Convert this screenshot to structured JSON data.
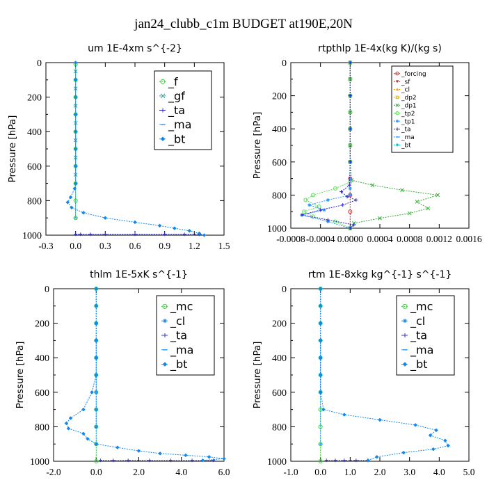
{
  "figure": {
    "title": "jan24_clubb_c1m  BUDGET at190E,20N"
  },
  "chart_data": [
    {
      "type": "line",
      "title": "um   1E-4xm s^{-2}",
      "ylabel": "Pressure [hPa]",
      "xlim": [
        -0.3,
        1.5
      ],
      "ylim": [
        1000,
        0
      ],
      "xticks": [
        "-0.3",
        "0.0",
        "0.3",
        "0.6",
        "0.9",
        "1.2",
        "1.5"
      ],
      "yticks": [
        "0",
        "200",
        "400",
        "600",
        "800",
        "1000"
      ],
      "legend_position": "top-right",
      "legend_font": 16,
      "legend_box": 1,
      "series": [
        {
          "name": "_f",
          "color": "#33cc33",
          "marker": "circle-open",
          "x": [
            0.0,
            0.0,
            0.0,
            0.0,
            0.0,
            0.0,
            0.0,
            0.0,
            0.0,
            0.0
          ],
          "y": [
            10,
            100,
            200,
            300,
            400,
            500,
            600,
            700,
            800,
            900
          ]
        },
        {
          "name": "_gf",
          "color": "#339999",
          "marker": "x",
          "x": [
            0.0,
            0.0,
            0.0,
            0.0,
            0.0,
            0.0,
            0.0
          ],
          "y": [
            50,
            150,
            250,
            350,
            450,
            550,
            650
          ]
        },
        {
          "name": "_ta",
          "color": "#3333cc",
          "marker": "plus",
          "x": [
            0.0,
            0.05,
            0.15,
            0.3,
            0.6,
            0.9,
            1.1,
            1.25
          ],
          "y": [
            995,
            995,
            995,
            995,
            995,
            995,
            995,
            995
          ]
        },
        {
          "name": "_ma",
          "color": "#3399ff",
          "marker": "dash",
          "x": [
            0.0,
            0.0,
            0.0
          ],
          "y": [
            300,
            600,
            900
          ]
        },
        {
          "name": "_bt",
          "color": "#1188ee",
          "marker": "diamond",
          "x": [
            0.0,
            0.0,
            0.0,
            0.0,
            0.0,
            0.0,
            0.0,
            0.0,
            -0.01,
            -0.05,
            -0.08,
            -0.04,
            0.08,
            0.3,
            0.6,
            0.85,
            1.0,
            1.15,
            1.25,
            1.3
          ],
          "y": [
            0,
            100,
            200,
            300,
            400,
            500,
            600,
            700,
            730,
            780,
            810,
            840,
            870,
            900,
            925,
            945,
            960,
            975,
            990,
            1000
          ]
        }
      ]
    },
    {
      "type": "line",
      "title": "rtpthlp   1E-4x(kg K)/(kg s)",
      "ylabel": "Pressure [hPa]",
      "xlim": [
        -0.0008,
        0.0016
      ],
      "ylim": [
        1000,
        0
      ],
      "xticks": [
        "-0.0008",
        "-0.0004",
        "0.0000",
        "0.0004",
        "0.0008",
        "0.0012",
        "0.0016"
      ],
      "yticks": [
        "0",
        "200",
        "400",
        "600",
        "800",
        "1000"
      ],
      "legend_position": "top-right",
      "legend_font": 9,
      "legend_box": 1,
      "series": [
        {
          "name": "_forcing",
          "color": "#dd2222",
          "marker": "circle-open",
          "x": [
            0,
            0,
            0,
            0,
            0,
            0,
            0,
            0,
            0,
            0,
            0
          ],
          "y": [
            0,
            100,
            200,
            300,
            400,
            500,
            600,
            700,
            800,
            900,
            1000
          ]
        },
        {
          "name": "_sf",
          "color": "#cc2222",
          "marker": "triangle-down",
          "x": [],
          "y": []
        },
        {
          "name": "_cl",
          "color": "#ff9900",
          "marker": "triangle-up",
          "x": [],
          "y": []
        },
        {
          "name": "_dp2",
          "color": "#ddbb00",
          "marker": "square",
          "x": [],
          "y": []
        },
        {
          "name": "_dp1",
          "color": "#33aa33",
          "marker": "x",
          "x": [
            0,
            0,
            0,
            0,
            0,
            0,
            0,
            2e-05,
            0.0003,
            0.0007,
            0.00118,
            0.0009,
            0.00105,
            0.0008,
            0.0004,
            5e-05,
            0
          ],
          "y": [
            0,
            100,
            200,
            300,
            400,
            500,
            600,
            710,
            740,
            770,
            800,
            840,
            880,
            910,
            940,
            970,
            1000
          ]
        },
        {
          "name": "_tp2",
          "color": "#55dd55",
          "marker": "circle-open",
          "x": [
            0,
            0,
            0,
            0,
            0,
            0,
            0,
            0,
            -0.0002,
            -0.0005,
            -0.0006,
            -0.00042,
            -0.00062,
            -0.0005,
            -0.0002,
            0
          ],
          "y": [
            0,
            100,
            200,
            300,
            400,
            500,
            600,
            720,
            760,
            800,
            830,
            870,
            900,
            930,
            960,
            1000
          ]
        },
        {
          "name": "_tp1",
          "color": "#3399ff",
          "marker": "star",
          "x": [
            0,
            0,
            0,
            0,
            0,
            0,
            0,
            -0.0003,
            -0.00055,
            -0.00035,
            -0.00065,
            -0.0003,
            0
          ],
          "y": [
            0,
            200,
            400,
            600,
            700,
            760,
            800,
            830,
            860,
            890,
            920,
            960,
            1000
          ]
        },
        {
          "name": "_ta",
          "color": "#2222cc",
          "marker": "plus",
          "x": [
            0,
            0,
            0,
            0,
            -1e-05,
            -0.00012,
            -4e-05,
            8e-05,
            -0.0001,
            -0.0004,
            -0.00065,
            -0.0003,
            5e-05,
            0
          ],
          "y": [
            0,
            200,
            400,
            600,
            740,
            780,
            810,
            830,
            860,
            890,
            920,
            950,
            980,
            1000
          ]
        },
        {
          "name": "_ma",
          "color": "#3399ff",
          "marker": "dash",
          "x": [],
          "y": []
        },
        {
          "name": "_bt",
          "color": "#00ccdd",
          "marker": "diamond",
          "x": [],
          "y": []
        }
      ]
    },
    {
      "type": "line",
      "title": "thlm   1E-5xK s^{-1}",
      "ylabel": "Pressure [hPa]",
      "xlim": [
        -2.0,
        6.0
      ],
      "ylim": [
        1000,
        0
      ],
      "xticks": [
        "-2.0",
        "0.0",
        "2.0",
        "4.0",
        "6.0"
      ],
      "yticks": [
        "0",
        "200",
        "400",
        "600",
        "800",
        "1000"
      ],
      "legend_position": "top-right",
      "legend_font": 16,
      "legend_box": 1,
      "series": [
        {
          "name": "_mc",
          "color": "#33cc33",
          "marker": "circle-open",
          "x": [
            0,
            0,
            0,
            0,
            0,
            0,
            0,
            0,
            0,
            0,
            0
          ],
          "y": [
            0,
            100,
            200,
            300,
            400,
            500,
            600,
            700,
            800,
            900,
            1000
          ]
        },
        {
          "name": "_cl",
          "color": "#1188ee",
          "marker": "star",
          "x": [
            0,
            0,
            0,
            0,
            0,
            0,
            0,
            0,
            0
          ],
          "y": [
            0,
            100,
            200,
            300,
            400,
            500,
            600,
            700,
            800
          ]
        },
        {
          "name": "_ta",
          "color": "#3333cc",
          "marker": "plus",
          "x": [
            0.2,
            0.8,
            1.5,
            2.5,
            3.5,
            4.5,
            5.5
          ],
          "y": [
            995,
            995,
            995,
            995,
            995,
            995,
            995
          ]
        },
        {
          "name": "_ma",
          "color": "#3399ff",
          "marker": "dash",
          "x": [
            0,
            0,
            0
          ],
          "y": [
            300,
            600,
            900
          ]
        },
        {
          "name": "_bt",
          "color": "#1188ee",
          "marker": "diamond",
          "x": [
            0,
            0,
            0,
            0,
            0,
            0,
            -0.2,
            -0.6,
            -1.2,
            -1.4,
            -1.3,
            -0.6,
            -0.4,
            0.0,
            1.0,
            2.0,
            3.0,
            4.2,
            5.3,
            6.0,
            5.0
          ],
          "y": [
            0,
            100,
            200,
            300,
            400,
            500,
            600,
            700,
            750,
            780,
            810,
            840,
            870,
            900,
            920,
            940,
            955,
            965,
            975,
            985,
            995
          ]
        }
      ]
    },
    {
      "type": "line",
      "title": "rtm   1E-8xkg kg^{-1} s^{-1}",
      "ylabel": "Pressure [hPa]",
      "xlim": [
        -1.0,
        5.0
      ],
      "ylim": [
        1000,
        0
      ],
      "xticks": [
        "-1.0",
        "0.0",
        "1.0",
        "2.0",
        "3.0",
        "4.0",
        "5.0"
      ],
      "yticks": [
        "0",
        "200",
        "400",
        "600",
        "800",
        "1000"
      ],
      "legend_position": "top-right",
      "legend_font": 16,
      "legend_box": 1,
      "series": [
        {
          "name": "_mc",
          "color": "#33cc33",
          "marker": "circle-open",
          "x": [
            0,
            0,
            0,
            0,
            0,
            0,
            0,
            0,
            0,
            0,
            0
          ],
          "y": [
            0,
            100,
            200,
            300,
            400,
            500,
            600,
            700,
            800,
            900,
            1000
          ]
        },
        {
          "name": "_cl",
          "color": "#1188ee",
          "marker": "star",
          "x": [
            0,
            0,
            0,
            0,
            0,
            0,
            0
          ],
          "y": [
            0,
            100,
            200,
            300,
            400,
            500,
            600
          ]
        },
        {
          "name": "_ta",
          "color": "#3333cc",
          "marker": "plus",
          "x": [
            0.2,
            0.5,
            0.8,
            1.2,
            1.6
          ],
          "y": [
            995,
            995,
            995,
            995,
            995
          ]
        },
        {
          "name": "_ma",
          "color": "#3399ff",
          "marker": "dash",
          "x": [
            0,
            0,
            0
          ],
          "y": [
            300,
            600,
            900
          ]
        },
        {
          "name": "_bt",
          "color": "#1188ee",
          "marker": "diamond",
          "x": [
            0,
            0,
            0,
            0,
            0,
            0,
            0,
            0.1,
            0.8,
            2.0,
            3.2,
            3.9,
            3.7,
            4.2,
            4.3,
            3.8,
            2.8,
            1.9,
            1.6
          ],
          "y": [
            0,
            100,
            200,
            300,
            400,
            500,
            600,
            700,
            730,
            760,
            790,
            820,
            850,
            880,
            910,
            930,
            950,
            975,
            995
          ]
        }
      ]
    }
  ]
}
